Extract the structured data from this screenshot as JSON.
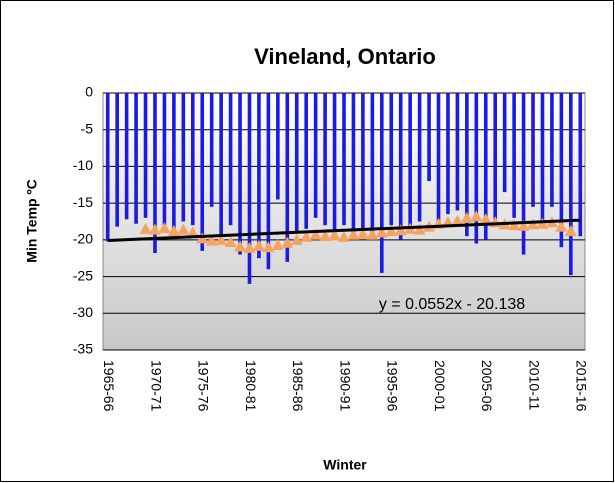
{
  "chart_data": {
    "type": "bar",
    "title": "Vineland, Ontario",
    "x_label": "Winter",
    "y_label": "Min Temp ºC",
    "annotation": "y = 0.0552x - 20.138",
    "categories": [
      "1965-66",
      null,
      null,
      null,
      null,
      "1970-71",
      null,
      null,
      null,
      null,
      "1975-76",
      null,
      null,
      null,
      null,
      "1980-81",
      null,
      null,
      null,
      null,
      "1985-86",
      null,
      null,
      null,
      null,
      "1990-91",
      null,
      null,
      null,
      null,
      "1995-96",
      null,
      null,
      null,
      null,
      "2000-01",
      null,
      null,
      null,
      null,
      "2005-06",
      null,
      null,
      null,
      null,
      "2010-11",
      null,
      null,
      null,
      null,
      "2015-16"
    ],
    "values": [
      -20.2,
      -18.2,
      -17.2,
      -17.8,
      -17.0,
      -21.8,
      -18.0,
      -18.5,
      -17.5,
      -18.0,
      -21.5,
      -15.5,
      -20.5,
      -18.0,
      -22.0,
      -26.0,
      -22.5,
      -24.0,
      -14.5,
      -23.0,
      -19.0,
      -18.5,
      -17.0,
      -18.0,
      -19.5,
      -18.0,
      -19.5,
      -19.0,
      -20.0,
      -24.5,
      -18.0,
      -20.0,
      -19.0,
      -17.5,
      -12.0,
      -17.5,
      -16.5,
      -16.0,
      -19.5,
      -20.5,
      -20.0,
      -17.5,
      -13.5,
      -17.0,
      -22.0,
      -15.5,
      -17.5,
      -15.5,
      -21.0,
      -24.8,
      -19.5
    ],
    "color": "#1a1ae0",
    "average": {
      "color": "#f4a460",
      "values": [
        null,
        null,
        null,
        null,
        -18.5,
        -18.6,
        -18.4,
        -18.8,
        -18.6,
        -19.0,
        -19.8,
        -20.1,
        -20.0,
        -20.3,
        -20.9,
        -21.1,
        -20.8,
        -21.0,
        -20.7,
        -20.4,
        -20.0,
        -19.6,
        -19.3,
        -19.5,
        -19.4,
        -19.6,
        -19.3,
        -19.2,
        -19.3,
        -19.0,
        -18.8,
        -18.7,
        -18.5,
        -18.6,
        -18.2,
        -17.8,
        -17.6,
        -17.4,
        -17.0,
        -16.8,
        -17.2,
        -17.6,
        -17.9,
        -18.0,
        -18.1,
        -17.9,
        -17.8,
        -17.6,
        -18.2,
        -18.8,
        null
      ]
    },
    "trend": {
      "color": "#000000",
      "x": [
        0,
        50
      ],
      "values": [
        -20.08,
        -17.32
      ]
    },
    "ylim": [
      -35,
      0
    ],
    "yticks": [
      0,
      -5,
      -10,
      -15,
      -20,
      -25,
      -30,
      -35
    ],
    "grid": true
  }
}
